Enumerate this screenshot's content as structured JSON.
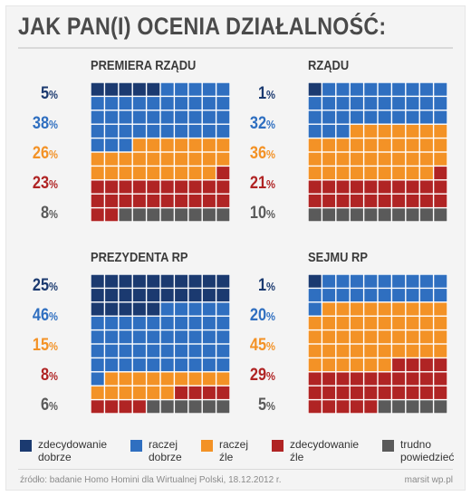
{
  "title": "JAK PAN(I) OCENIA DZIAŁALNOŚĆ:",
  "colors": {
    "zdecydowanie_dobrze": "#1b3a70",
    "raczej_dobrze": "#2f6fc0",
    "raczej_zle": "#f39226",
    "zdecydowanie_zle": "#b02424",
    "trudno_powiedziec": "#5a5a5a"
  },
  "legend": [
    {
      "key": "zdecydowanie_dobrze",
      "label": "zdecydowanie\ndobrze"
    },
    {
      "key": "raczej_dobrze",
      "label": "raczej\ndobrze"
    },
    {
      "key": "raczej_zle",
      "label": "raczej\nźle"
    },
    {
      "key": "zdecydowanie_zle",
      "label": "zdecydowanie\nźle"
    },
    {
      "key": "trudno_powiedziec",
      "label": "trudno\npowiedzieć"
    }
  ],
  "chart_data": [
    {
      "type": "waffle",
      "title": "PREMIERA RZĄDU",
      "categories": [
        "zdecydowanie dobrze",
        "raczej dobrze",
        "raczej źle",
        "zdecydowanie źle",
        "trudno powiedzieć"
      ],
      "values": [
        5,
        38,
        26,
        23,
        8
      ],
      "labels": [
        "5",
        "38",
        "26",
        "23",
        "8"
      ]
    },
    {
      "type": "waffle",
      "title": "RZĄDU",
      "categories": [
        "zdecydowanie dobrze",
        "raczej dobrze",
        "raczej źle",
        "zdecydowanie źle",
        "trudno powiedzieć"
      ],
      "values": [
        1,
        32,
        36,
        21,
        10
      ],
      "labels": [
        "1",
        "32",
        "36",
        "21",
        "10"
      ]
    },
    {
      "type": "waffle",
      "title": "PREZYDENTA RP",
      "categories": [
        "zdecydowanie dobrze",
        "raczej dobrze",
        "raczej źle",
        "zdecydowanie źle",
        "trudno powiedzieć"
      ],
      "values": [
        25,
        46,
        15,
        8,
        6
      ],
      "labels": [
        "25",
        "46",
        "15",
        "8",
        "6"
      ]
    },
    {
      "type": "waffle",
      "title": "SEJMU RP",
      "categories": [
        "zdecydowanie dobrze",
        "raczej dobrze",
        "raczej źle",
        "zdecydowanie źle",
        "trudno powiedzieć"
      ],
      "values": [
        1,
        20,
        45,
        29,
        5
      ],
      "labels": [
        "1",
        "20",
        "45",
        "29",
        "5"
      ]
    }
  ],
  "percent_sign": "%",
  "source": "źródło: badanie Homo Homini dla Wirtualnej Polski, 18.12.2012 r.",
  "credit": "marsit wp.pl"
}
